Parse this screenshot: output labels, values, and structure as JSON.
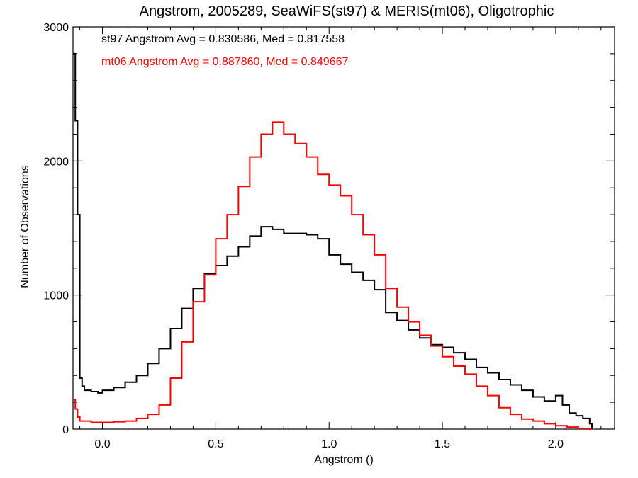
{
  "chart_data": {
    "type": "histogram-step",
    "title": "Angstrom, 2005289, SeaWiFS(st97) & MERIS(mt06), Oligotrophic",
    "xlabel": "Angstrom ()",
    "ylabel": "Number of Observations",
    "xlim": [
      -0.13,
      2.26
    ],
    "ylim": [
      0,
      3000
    ],
    "x_ticks": [
      {
        "value": 0.0,
        "label": "0.0"
      },
      {
        "value": 0.5,
        "label": "0.5"
      },
      {
        "value": 1.0,
        "label": "1.0"
      },
      {
        "value": 1.5,
        "label": "1.5"
      },
      {
        "value": 2.0,
        "label": "2.0"
      }
    ],
    "y_ticks": [
      {
        "value": 0,
        "label": "0"
      },
      {
        "value": 1000,
        "label": "1000"
      },
      {
        "value": 2000,
        "label": "2000"
      },
      {
        "value": 3000,
        "label": "3000"
      }
    ],
    "grid": false,
    "annotations": [
      {
        "text": "st97 Angstrom Avg = 0.830586, Med = 0.817558",
        "color": "#000000"
      },
      {
        "text": "mt06 Angstrom Avg = 0.887860, Med = 0.849667",
        "color": "#ff0000"
      }
    ],
    "series": [
      {
        "color": "#000000",
        "points": [
          [
            -0.13,
            2800
          ],
          [
            -0.12,
            2300
          ],
          [
            -0.11,
            1600
          ],
          [
            -0.1,
            380
          ],
          [
            -0.09,
            320
          ],
          [
            -0.08,
            290
          ],
          [
            -0.05,
            280
          ],
          [
            -0.02,
            270
          ],
          [
            0.0,
            290
          ],
          [
            0.05,
            310
          ],
          [
            0.1,
            350
          ],
          [
            0.15,
            400
          ],
          [
            0.2,
            490
          ],
          [
            0.25,
            600
          ],
          [
            0.3,
            750
          ],
          [
            0.35,
            900
          ],
          [
            0.4,
            1050
          ],
          [
            0.45,
            1160
          ],
          [
            0.5,
            1220
          ],
          [
            0.55,
            1290
          ],
          [
            0.6,
            1360
          ],
          [
            0.65,
            1440
          ],
          [
            0.7,
            1510
          ],
          [
            0.75,
            1490
          ],
          [
            0.8,
            1460
          ],
          [
            0.85,
            1460
          ],
          [
            0.9,
            1450
          ],
          [
            0.95,
            1420
          ],
          [
            1.0,
            1300
          ],
          [
            1.05,
            1230
          ],
          [
            1.1,
            1170
          ],
          [
            1.15,
            1110
          ],
          [
            1.2,
            1040
          ],
          [
            1.25,
            870
          ],
          [
            1.3,
            810
          ],
          [
            1.35,
            740
          ],
          [
            1.4,
            680
          ],
          [
            1.45,
            630
          ],
          [
            1.5,
            610
          ],
          [
            1.55,
            570
          ],
          [
            1.6,
            520
          ],
          [
            1.65,
            460
          ],
          [
            1.7,
            420
          ],
          [
            1.75,
            370
          ],
          [
            1.8,
            330
          ],
          [
            1.85,
            290
          ],
          [
            1.9,
            240
          ],
          [
            1.95,
            210
          ],
          [
            2.0,
            250
          ],
          [
            2.03,
            180
          ],
          [
            2.06,
            120
          ],
          [
            2.09,
            100
          ],
          [
            2.12,
            80
          ],
          [
            2.15,
            40
          ]
        ]
      },
      {
        "color": "#ff0000",
        "points": [
          [
            -0.13,
            220
          ],
          [
            -0.12,
            150
          ],
          [
            -0.11,
            90
          ],
          [
            -0.1,
            60
          ],
          [
            -0.05,
            50
          ],
          [
            0.0,
            50
          ],
          [
            0.05,
            55
          ],
          [
            0.1,
            60
          ],
          [
            0.15,
            80
          ],
          [
            0.2,
            110
          ],
          [
            0.25,
            180
          ],
          [
            0.3,
            380
          ],
          [
            0.35,
            650
          ],
          [
            0.4,
            950
          ],
          [
            0.45,
            1150
          ],
          [
            0.5,
            1420
          ],
          [
            0.55,
            1600
          ],
          [
            0.6,
            1810
          ],
          [
            0.65,
            2030
          ],
          [
            0.7,
            2200
          ],
          [
            0.75,
            2290
          ],
          [
            0.8,
            2200
          ],
          [
            0.85,
            2130
          ],
          [
            0.9,
            2030
          ],
          [
            0.95,
            1900
          ],
          [
            1.0,
            1820
          ],
          [
            1.05,
            1740
          ],
          [
            1.1,
            1600
          ],
          [
            1.15,
            1450
          ],
          [
            1.2,
            1300
          ],
          [
            1.25,
            1050
          ],
          [
            1.3,
            910
          ],
          [
            1.35,
            800
          ],
          [
            1.4,
            700
          ],
          [
            1.45,
            620
          ],
          [
            1.5,
            540
          ],
          [
            1.55,
            470
          ],
          [
            1.6,
            410
          ],
          [
            1.65,
            320
          ],
          [
            1.7,
            250
          ],
          [
            1.75,
            160
          ],
          [
            1.8,
            110
          ],
          [
            1.85,
            75
          ],
          [
            1.9,
            60
          ],
          [
            1.95,
            40
          ],
          [
            2.0,
            25
          ],
          [
            2.05,
            15
          ],
          [
            2.1,
            5
          ],
          [
            2.15,
            0
          ]
        ]
      }
    ]
  }
}
